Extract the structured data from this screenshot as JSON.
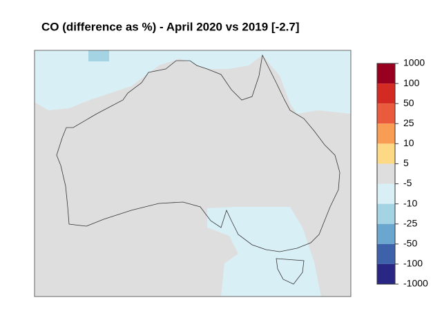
{
  "chart_data": {
    "type": "map",
    "title": "CO (difference as %) - April 2020 vs 2019 [-2.7]",
    "colorbar": {
      "ticks": [
        1000,
        100,
        50,
        25,
        10,
        5,
        -5,
        -10,
        -25,
        -50,
        -100,
        -1000
      ],
      "colors": [
        "#99001f",
        "#d42a24",
        "#ea5a3c",
        "#f99d55",
        "#fed985",
        "#dedede",
        "#d9eff6",
        "#a4d4e4",
        "#6aa6cd",
        "#3d62aa",
        "#2a2784"
      ]
    }
  }
}
